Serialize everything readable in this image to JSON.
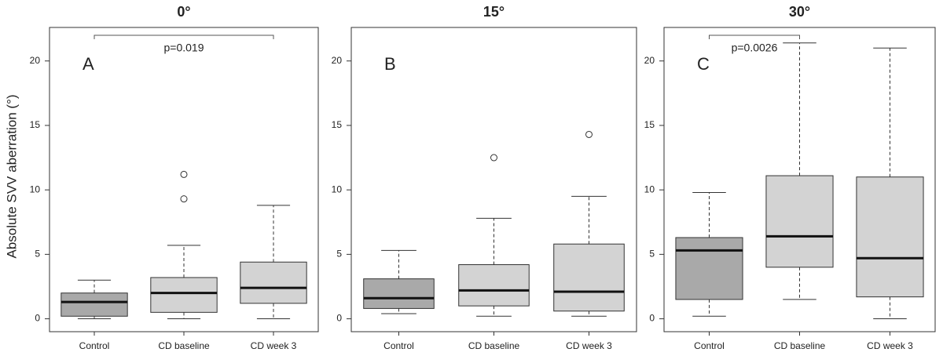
{
  "chart_data": [
    {
      "type": "box",
      "title": "0°",
      "panel_label": "A",
      "y_label": "Absolute SVV aberration (°)",
      "categories": [
        "Control",
        "CD baseline",
        "CD week 3"
      ],
      "boxes": [
        {
          "whisker_low": 0,
          "q1": 0.2,
          "median": 1.3,
          "q3": 2.0,
          "whisker_high": 3.0,
          "outliers": [],
          "color": "#a9a9a9"
        },
        {
          "whisker_low": 0,
          "q1": 0.5,
          "median": 2.0,
          "q3": 3.2,
          "whisker_high": 5.7,
          "outliers": [
            9.3,
            11.2
          ],
          "color": "#d3d3d3"
        },
        {
          "whisker_low": 0,
          "q1": 1.2,
          "median": 2.4,
          "q3": 4.4,
          "whisker_high": 8.8,
          "outliers": [],
          "color": "#d3d3d3"
        }
      ],
      "significance": {
        "label": "p=0.019",
        "from": "Control",
        "to": "CD week 3"
      },
      "ylim": [
        -1,
        22.6
      ],
      "yticks": [
        0,
        5,
        10,
        15,
        20
      ]
    },
    {
      "type": "box",
      "title": "15°",
      "panel_label": "B",
      "categories": [
        "Control",
        "CD baseline",
        "CD week 3"
      ],
      "boxes": [
        {
          "whisker_low": 0.4,
          "q1": 0.8,
          "median": 1.6,
          "q3": 3.1,
          "whisker_high": 5.3,
          "outliers": [],
          "color": "#a9a9a9"
        },
        {
          "whisker_low": 0.2,
          "q1": 1.0,
          "median": 2.2,
          "q3": 4.2,
          "whisker_high": 7.8,
          "outliers": [
            12.5
          ],
          "color": "#d3d3d3"
        },
        {
          "whisker_low": 0.2,
          "q1": 0.6,
          "median": 2.1,
          "q3": 5.8,
          "whisker_high": 9.5,
          "outliers": [
            14.3
          ],
          "color": "#d3d3d3"
        }
      ],
      "ylim": [
        -1,
        22.6
      ],
      "yticks": [
        0,
        5,
        10,
        15,
        20
      ]
    },
    {
      "type": "box",
      "title": "30°",
      "panel_label": "C",
      "categories": [
        "Control",
        "CD baseline",
        "CD week 3"
      ],
      "boxes": [
        {
          "whisker_low": 0.2,
          "q1": 1.5,
          "median": 5.3,
          "q3": 6.3,
          "whisker_high": 9.8,
          "outliers": [],
          "color": "#a9a9a9"
        },
        {
          "whisker_low": 1.5,
          "q1": 4.0,
          "median": 6.4,
          "q3": 11.1,
          "whisker_high": 21.4,
          "outliers": [],
          "color": "#d3d3d3"
        },
        {
          "whisker_low": 0,
          "q1": 1.7,
          "median": 4.7,
          "q3": 11.0,
          "whisker_high": 21.0,
          "outliers": [],
          "color": "#d3d3d3"
        }
      ],
      "significance": {
        "label": "p=0.0026",
        "from": "Control",
        "to": "CD baseline"
      },
      "ylim": [
        -1,
        22.6
      ],
      "yticks": [
        0,
        5,
        10,
        15,
        20
      ]
    }
  ]
}
